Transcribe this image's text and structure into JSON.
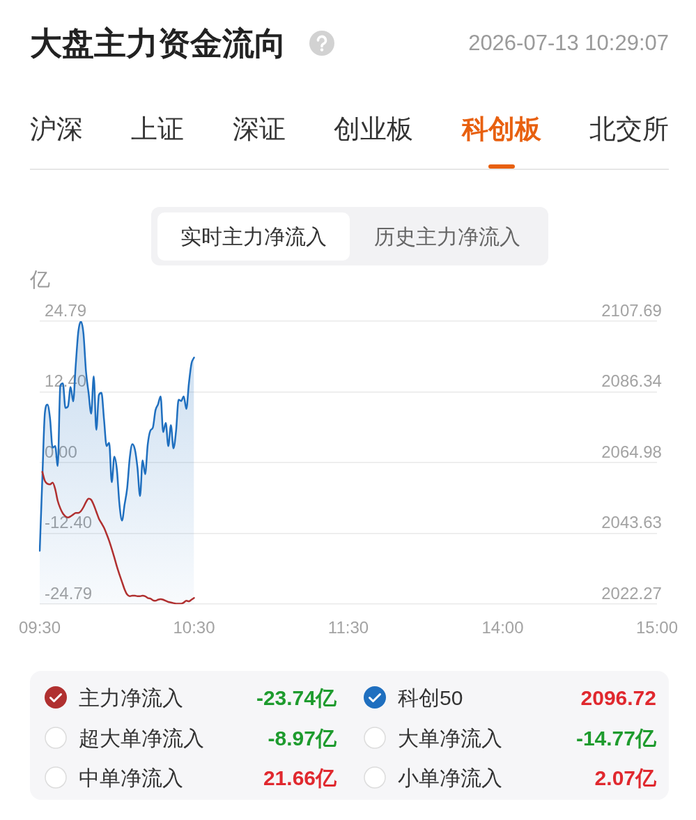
{
  "chart_data": {
    "type": "line",
    "title": "大盘主力资金流向",
    "subtitle": "2026-07-13 10:29:07",
    "ylabel": "亿",
    "categories": [
      "09:30",
      null,
      null,
      null,
      null,
      null,
      null,
      null,
      null,
      null,
      null,
      null,
      null,
      null,
      null,
      null,
      null,
      null,
      null,
      null,
      null,
      null,
      null,
      null,
      null,
      null,
      null,
      null,
      null,
      null,
      null,
      null,
      null,
      null,
      null,
      null,
      null,
      null,
      null,
      null,
      null,
      null,
      null,
      null,
      null,
      null,
      null,
      null,
      null,
      null,
      null,
      null,
      null,
      null,
      null,
      null,
      null,
      null,
      null,
      null,
      "10:30",
      null,
      null,
      null,
      null,
      null,
      null,
      null,
      null,
      null,
      null,
      null,
      null,
      null,
      null,
      null,
      null,
      null,
      null,
      null,
      null,
      null,
      null,
      null,
      null,
      null,
      null,
      null,
      null,
      null,
      null,
      null,
      null,
      null,
      null,
      null,
      null,
      null,
      null,
      null,
      null,
      null,
      null,
      null,
      null,
      null,
      null,
      null,
      null,
      null,
      null,
      null,
      null,
      null,
      null,
      null,
      null,
      null,
      null,
      null,
      "11:30",
      null,
      null,
      null,
      null,
      null,
      null,
      null,
      null,
      null,
      null,
      null,
      null,
      null,
      null,
      null,
      null,
      null,
      null,
      null,
      null,
      null,
      null,
      null,
      null,
      null,
      null,
      null,
      null,
      null,
      null,
      null,
      null,
      null,
      null,
      null,
      null,
      null,
      null,
      null,
      null,
      null,
      null,
      null,
      null,
      null,
      null,
      null,
      null,
      null,
      null,
      null,
      null,
      null,
      null,
      null,
      null,
      null,
      null,
      null,
      "14:00",
      null,
      null,
      null,
      null,
      null,
      null,
      null,
      null,
      null,
      null,
      null,
      null,
      null,
      null,
      null,
      null,
      null,
      null,
      null,
      null,
      null,
      null,
      null,
      null,
      null,
      null,
      null,
      null,
      null,
      null,
      null,
      null,
      null,
      null,
      null,
      null,
      null,
      null,
      null,
      null,
      null,
      null,
      null,
      null,
      null,
      null,
      null,
      null,
      null,
      null,
      null,
      null,
      null,
      null,
      null,
      null,
      null,
      null,
      null,
      "15:00"
    ],
    "ylim": [
      -24.79,
      24.79
    ],
    "yticks": [
      -24.79,
      {
        "value": -12.4,
        "label": "-12.40"
      },
      {
        "value": 0,
        "label": "0.00"
      },
      {
        "value": 12.4,
        "label": "12.40"
      },
      24.79
    ],
    "y2lim": [
      2022.27,
      2107.69
    ],
    "y2ticks": [
      2022.27,
      2043.63,
      2064.98,
      2086.34,
      2107.69
    ],
    "grid": "y",
    "legend": "bottom",
    "series": [
      {
        "name": "主力净流入",
        "color": "#b03030",
        "values": [
          null,
          -1.6,
          -3.2,
          -3.7,
          -3.8,
          -3.5,
          -4.6,
          -6.7,
          -8.0,
          -8.9,
          -9.4,
          -9.6,
          -9.4,
          -9.1,
          -8.8,
          -8.8,
          -8.5,
          -7.8,
          -6.9,
          -6.3,
          -6.5,
          -7.4,
          -8.6,
          -9.8,
          -10.6,
          -11.4,
          -12.5,
          -13.7,
          -15.1,
          -16.6,
          -18.2,
          -19.6,
          -20.9,
          -22.2,
          -23.1,
          -23.4,
          -23.3,
          -23.3,
          -23.4,
          -23.4,
          -23.3,
          -23.4,
          -23.7,
          -23.8,
          -24.1,
          -24.2,
          -24.0,
          -23.9,
          -24.0,
          -24.2,
          -24.4,
          -24.5,
          -24.6,
          -24.7,
          -24.7,
          -24.7,
          -24.5,
          -24.2,
          -24.3,
          -24.0,
          -23.7,
          null,
          null,
          null,
          null,
          null,
          null,
          null,
          null,
          null,
          null,
          null,
          null,
          null,
          null,
          null,
          null,
          null,
          null,
          null,
          null,
          null,
          null,
          null,
          null,
          null,
          null,
          null,
          null,
          null,
          null,
          null,
          null,
          null,
          null,
          null,
          null,
          null,
          null,
          null,
          null,
          null,
          null,
          null,
          null,
          null,
          null,
          null,
          null,
          null,
          null,
          null,
          null,
          null,
          null,
          null,
          null,
          null,
          null,
          null,
          null,
          null,
          null,
          null,
          null,
          null,
          null,
          null,
          null,
          null,
          null,
          null,
          null,
          null,
          null,
          null,
          null,
          null,
          null,
          null,
          null,
          null,
          null,
          null,
          null,
          null,
          null,
          null,
          null,
          null,
          null,
          null,
          null,
          null,
          null,
          null,
          null,
          null,
          null,
          null,
          null,
          null,
          null,
          null,
          null,
          null,
          null,
          null,
          null,
          null,
          null,
          null,
          null,
          null,
          null,
          null,
          null,
          null,
          null,
          null,
          null,
          null,
          null,
          null,
          null,
          null,
          null,
          null,
          null,
          null,
          null,
          null,
          null,
          null,
          null,
          null,
          null,
          null,
          null,
          null,
          null,
          null,
          null,
          null,
          null,
          null,
          null,
          null,
          null,
          null,
          null,
          null,
          null,
          null,
          null,
          null,
          null,
          null,
          null,
          null,
          null,
          null,
          null,
          null,
          null,
          null,
          null,
          null,
          null,
          null,
          null,
          null,
          null,
          null,
          null,
          null,
          null,
          null,
          null,
          null,
          null
        ]
      },
      {
        "name": "科创50",
        "type": "area",
        "axis": "y2",
        "color": "#1f6fbf",
        "values": [
          2038.4,
          2060.0,
          2080.0,
          2082.5,
          2078.4,
          2069.5,
          2070.0,
          2064.0,
          2088.2,
          2088.9,
          2081.5,
          2082.0,
          2087.8,
          2083.5,
          2094.5,
          2104.5,
          2107.6,
          2104.0,
          2092.4,
          2086.0,
          2079.8,
          2091.0,
          2074.9,
          2085.4,
          2086.1,
          2078.0,
          2070.0,
          2071.0,
          2059.1,
          2066.8,
          2062.9,
          2052.4,
          2047.5,
          2052.4,
          2057.3,
          2066.4,
          2070.6,
          2069.0,
          2063.5,
          2054.9,
          2065.7,
          2061.5,
          2070.5,
          2074.6,
          2075.6,
          2080.8,
          2082.6,
          2085.0,
          2074.2,
          2077.0,
          2070.0,
          2076.3,
          2069.3,
          2074.5,
          2084.0,
          2083.6,
          2085.0,
          2081.2,
          2088.9,
          2094.9,
          2096.7,
          null,
          null,
          null,
          null,
          null,
          null,
          null,
          null,
          null,
          null,
          null,
          null,
          null,
          null,
          null,
          null,
          null,
          null,
          null,
          null,
          null,
          null,
          null,
          null,
          null,
          null,
          null,
          null,
          null,
          null,
          null,
          null,
          null,
          null,
          null,
          null,
          null,
          null,
          null,
          null,
          null,
          null,
          null,
          null,
          null,
          null,
          null,
          null,
          null,
          null,
          null,
          null,
          null,
          null,
          null,
          null,
          null,
          null,
          null,
          null,
          null,
          null,
          null,
          null,
          null,
          null,
          null,
          null,
          null,
          null,
          null,
          null,
          null,
          null,
          null,
          null,
          null,
          null,
          null,
          null,
          null,
          null,
          null,
          null,
          null,
          null,
          null,
          null,
          null,
          null,
          null,
          null,
          null,
          null,
          null,
          null,
          null,
          null,
          null,
          null,
          null,
          null,
          null,
          null,
          null,
          null,
          null,
          null,
          null,
          null,
          null,
          null,
          null,
          null,
          null,
          null,
          null,
          null,
          null,
          null,
          null,
          null,
          null,
          null,
          null,
          null,
          null,
          null,
          null,
          null,
          null,
          null,
          null,
          null,
          null,
          null,
          null,
          null,
          null,
          null,
          null,
          null,
          null,
          null,
          null,
          null,
          null,
          null,
          null,
          null,
          null,
          null,
          null,
          null,
          null,
          null,
          null,
          null,
          null,
          null,
          null,
          null,
          null,
          null,
          null,
          null,
          null,
          null,
          null,
          null,
          null,
          null,
          null,
          null,
          null,
          null,
          null,
          null,
          null,
          null
        ]
      }
    ],
    "annotations": [
      "沪深",
      "上证",
      "深证",
      "创业板",
      "科创板",
      "北交所",
      "实时主力净流入",
      "历史主力净流入",
      "-23.74亿",
      "2096.72",
      "超大单净流入",
      "-8.97亿",
      "大单净流入",
      "-14.77亿",
      "中单净流入",
      "21.66亿",
      "小单净流入",
      "2.07亿"
    ]
  }
}
